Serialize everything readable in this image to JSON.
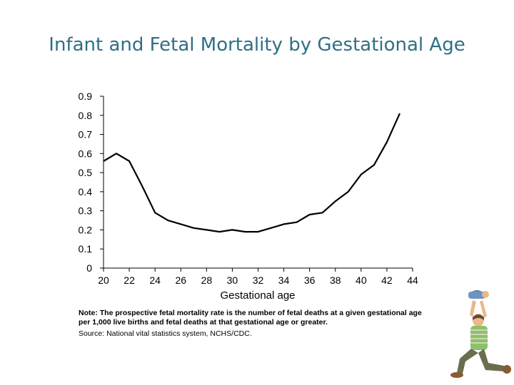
{
  "slide": {
    "title": "Infant and Fetal Mortality by Gestational Age",
    "note_label": "Note:",
    "note_text": "The prospective fetal mortality rate is the number of fetal deaths at a given gestational age per 1,000 live births and fetal deaths at that gestational age or greater.",
    "source": "Source: National vital statistics system, NCHS/CDC."
  },
  "chart_data": {
    "type": "line",
    "title": "",
    "xlabel": "Gestational age",
    "ylabel": "",
    "xlim": [
      20,
      44
    ],
    "ylim": [
      0,
      0.9
    ],
    "x_ticks": [
      20,
      22,
      24,
      26,
      28,
      30,
      32,
      34,
      36,
      38,
      40,
      42,
      44
    ],
    "y_ticks": [
      0,
      0.1,
      0.2,
      0.3,
      0.4,
      0.5,
      0.6,
      0.7,
      0.8,
      0.9
    ],
    "y_tick_labels": [
      "0",
      "0.1",
      "0.2",
      "0.3",
      "0.4",
      "0.5",
      "0.6",
      "0.7",
      "0.8",
      "0.9"
    ],
    "grid": false,
    "line_color": "#000000",
    "series": [
      {
        "x": [
          20,
          21,
          22,
          23,
          24,
          25,
          26,
          27,
          28,
          29,
          30,
          31,
          32,
          33,
          34,
          35,
          36,
          37,
          38,
          39,
          40,
          41,
          42,
          43
        ],
        "y": [
          0.56,
          0.6,
          0.56,
          0.43,
          0.29,
          0.25,
          0.23,
          0.21,
          0.2,
          0.19,
          0.2,
          0.19,
          0.19,
          0.21,
          0.23,
          0.24,
          0.28,
          0.29,
          0.35,
          0.4,
          0.49,
          0.54,
          0.66,
          0.81
        ]
      }
    ]
  },
  "decoration": {
    "figure_icon": "person-lifting-baby-icon"
  }
}
